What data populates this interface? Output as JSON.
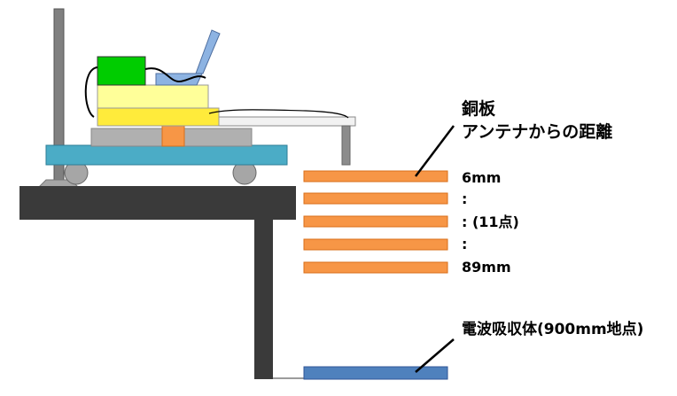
{
  "labels": {
    "copper_plate": "銅板",
    "distance_from_antenna": "アンテナからの距離",
    "first_distance": "6mm",
    "dots_1": ":",
    "middle_count": ": (11点)",
    "dots_2": ":",
    "last_distance": "89mm",
    "absorber": "電波吸収体(900mm地点)"
  },
  "colors": {
    "copper": "#f79646",
    "absorber": "#4f81bd",
    "cart": "#4bacc6",
    "table": "#3a3a3a",
    "green_box": "#00cc00",
    "light_yellow": "#ffff99",
    "yellow": "#ffeb3b",
    "gray": "#b0b0b0"
  }
}
